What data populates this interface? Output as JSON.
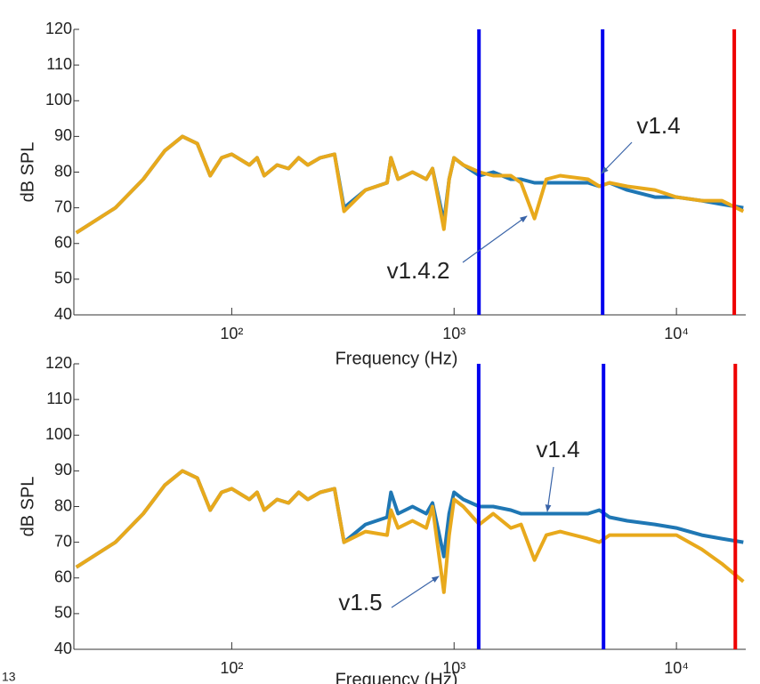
{
  "corner_text": "13",
  "chart_data": [
    {
      "type": "line",
      "xlabel": "Frequency (Hz)",
      "ylabel": "dB SPL",
      "log_x": true,
      "xlim": [
        19.5,
        20500
      ],
      "ylim": [
        40,
        120
      ],
      "xticks": [
        {
          "value": 100,
          "label": "10²"
        },
        {
          "value": 1000,
          "label": "10³"
        },
        {
          "value": 10000,
          "label": "10⁴"
        }
      ],
      "yticks": [
        40,
        50,
        60,
        70,
        80,
        90,
        100,
        110,
        120
      ],
      "x": [
        20,
        30,
        40,
        50,
        60,
        70,
        80,
        90,
        100,
        120,
        130,
        140,
        160,
        180,
        200,
        220,
        250,
        290,
        320,
        400,
        500,
        520,
        560,
        650,
        750,
        800,
        900,
        950,
        1000,
        1100,
        1300,
        1500,
        1800,
        2000,
        2300,
        2600,
        3000,
        4000,
        4500,
        5000,
        6000,
        8000,
        10000,
        13000,
        16000,
        20000
      ],
      "series": [
        {
          "color": "#1f77b4",
          "values": [
            63,
            70,
            78,
            86,
            90,
            88,
            79,
            84,
            85,
            82,
            84,
            79,
            82,
            81,
            84,
            82,
            84,
            85,
            70,
            75,
            77,
            84,
            78,
            80,
            78,
            81,
            66,
            78,
            84,
            82,
            79,
            80,
            78,
            78,
            77,
            77,
            77,
            77,
            76,
            77,
            75,
            73,
            73,
            72,
            71,
            70
          ]
        },
        {
          "color": "#e8a91c",
          "values": [
            63,
            70,
            78,
            86,
            90,
            88,
            79,
            84,
            85,
            82,
            84,
            79,
            82,
            81,
            84,
            82,
            84,
            85,
            69,
            75,
            77,
            84,
            78,
            80,
            78,
            81,
            64,
            78,
            84,
            82,
            80,
            79,
            79,
            77,
            67,
            78,
            79,
            78,
            76,
            77,
            76,
            75,
            73,
            72,
            72,
            69
          ]
        }
      ],
      "vlines": [
        {
          "x": 1294,
          "color": "#0000ee"
        },
        {
          "x": 4656,
          "color": "#0000ee"
        },
        {
          "x": 18200,
          "color": "#ee0000"
        }
      ],
      "annotations": [
        {
          "text": "v1.4"
        },
        {
          "text": "v1.4.2"
        }
      ]
    },
    {
      "type": "line",
      "xlabel": "Frequency (Hz)",
      "ylabel": "dB SPL",
      "log_x": true,
      "xlim": [
        19.5,
        20500
      ],
      "ylim": [
        40,
        120
      ],
      "xticks": [
        {
          "value": 100,
          "label": "10²"
        },
        {
          "value": 1000,
          "label": "10³"
        },
        {
          "value": 10000,
          "label": "10⁴"
        }
      ],
      "yticks": [
        40,
        50,
        60,
        70,
        80,
        90,
        100,
        110,
        120
      ],
      "x": [
        20,
        30,
        40,
        50,
        60,
        70,
        80,
        90,
        100,
        120,
        130,
        140,
        160,
        180,
        200,
        220,
        250,
        290,
        320,
        400,
        500,
        520,
        560,
        650,
        750,
        800,
        900,
        950,
        1000,
        1100,
        1300,
        1500,
        1800,
        2000,
        2300,
        2600,
        3000,
        4000,
        4500,
        5000,
        6000,
        8000,
        10000,
        13000,
        16000,
        20000
      ],
      "series": [
        {
          "color": "#1f77b4",
          "values": [
            63,
            70,
            78,
            86,
            90,
            88,
            79,
            84,
            85,
            82,
            84,
            79,
            82,
            81,
            84,
            82,
            84,
            85,
            70,
            75,
            77,
            84,
            78,
            80,
            78,
            81,
            66,
            78,
            84,
            82,
            80,
            80,
            79,
            78,
            78,
            78,
            78,
            78,
            79,
            77,
            76,
            75,
            74,
            72,
            71,
            70
          ]
        },
        {
          "color": "#e8a91c",
          "values": [
            63,
            70,
            78,
            86,
            90,
            88,
            79,
            84,
            85,
            82,
            84,
            79,
            82,
            81,
            84,
            82,
            84,
            85,
            70,
            73,
            72,
            79,
            74,
            76,
            74,
            80,
            56,
            72,
            82,
            80,
            75,
            78,
            74,
            75,
            65,
            72,
            73,
            71,
            70,
            72,
            72,
            72,
            72,
            68,
            64,
            59
          ]
        }
      ],
      "vlines": [
        {
          "x": 1290,
          "color": "#0000ee"
        },
        {
          "x": 4700,
          "color": "#0000ee"
        },
        {
          "x": 18400,
          "color": "#ee0000"
        }
      ],
      "annotations": [
        {
          "text": "v1.4"
        },
        {
          "text": "v1.5"
        }
      ]
    }
  ]
}
